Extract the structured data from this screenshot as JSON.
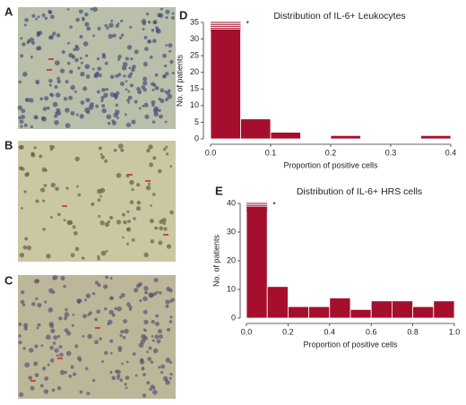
{
  "panels": [
    "A",
    "B",
    "C"
  ],
  "chart_data": [
    {
      "type": "histogram",
      "panel": "D",
      "title": "Distribution of IL-6+ Leukocytes",
      "xlabel": "Proportion of positive cells",
      "ylabel": "No. of patients",
      "bins": [
        0,
        0.05,
        0.1,
        0.15,
        0.2,
        0.25,
        0.3,
        0.35,
        0.4
      ],
      "values": [
        33,
        6,
        2,
        0,
        1,
        0,
        0,
        1
      ],
      "color": "#a50f2d",
      "annotation": "*",
      "xlim": [
        0,
        0.4
      ],
      "xticks": [
        {
          "value": 0,
          "label": "0.0"
        },
        0.1,
        0.2,
        0.3,
        0.4
      ],
      "ylim": [
        0,
        35
      ],
      "yticks": [
        0,
        5,
        10,
        15,
        20,
        25,
        30,
        35
      ]
    },
    {
      "type": "histogram",
      "panel": "E",
      "title": "Distribution of IL-6+ HRS cells",
      "xlabel": "Proportion of positive cells",
      "ylabel": "No. of patients",
      "bins": [
        0,
        0.1,
        0.2,
        0.3,
        0.4,
        0.5,
        0.6,
        0.7,
        0.8,
        0.9,
        1.0
      ],
      "values": [
        39,
        11,
        4,
        4,
        7,
        3,
        6,
        6,
        4,
        6
      ],
      "color": "#a50f2d",
      "annotation": "*",
      "xlim": [
        0,
        1
      ],
      "xticks": [
        {
          "value": 0,
          "label": "0.0"
        },
        0.2,
        0.4,
        0.6,
        0.8,
        {
          "value": 1,
          "label": "1.0"
        }
      ],
      "ylim": [
        0,
        40
      ],
      "yticks": [
        0,
        10,
        20,
        30,
        40
      ]
    }
  ]
}
